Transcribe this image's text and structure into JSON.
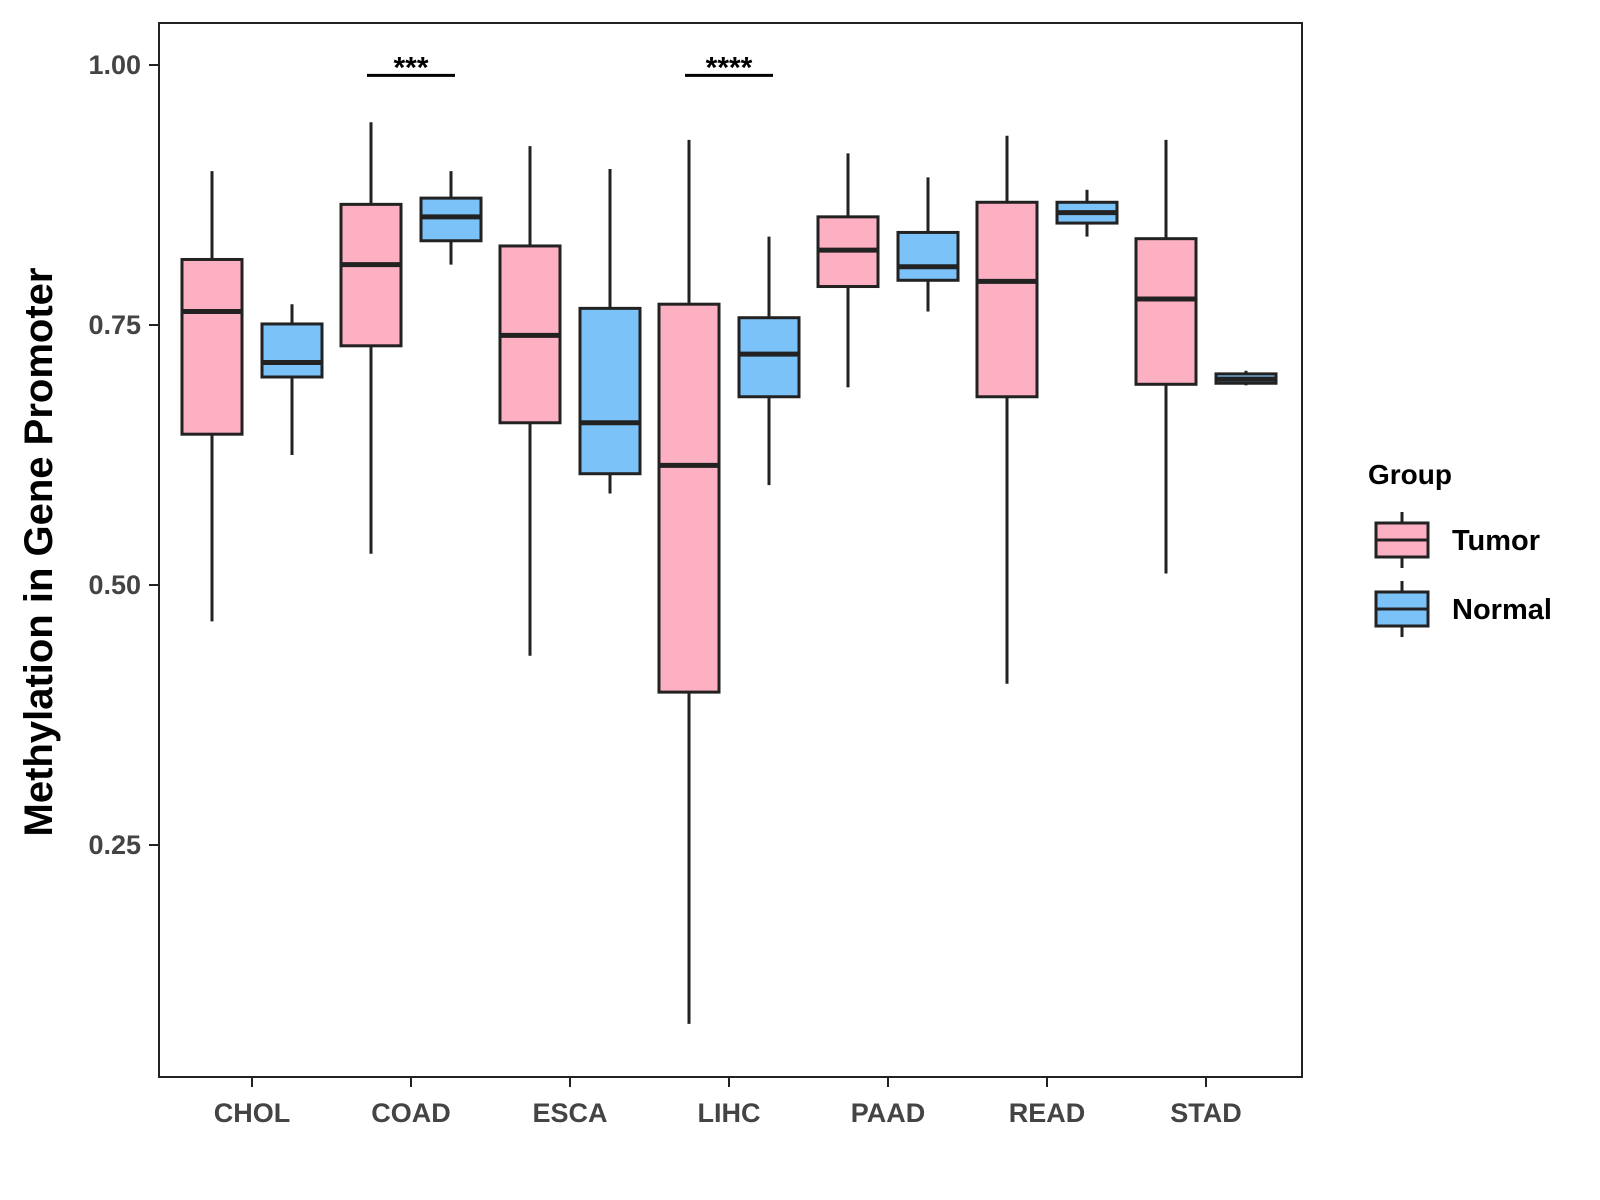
{
  "chart_data": {
    "type": "boxplot",
    "ylabel": "Methylation in Gene Promoter",
    "xlabel": "",
    "ylim": [
      0.05,
      1.04
    ],
    "yticks": [
      0.25,
      0.5,
      0.75,
      1.0
    ],
    "ytick_labels": [
      "0.25",
      "0.50",
      "0.75",
      "1.00"
    ],
    "grid": false,
    "legend": {
      "title": "Group",
      "placement": "right",
      "entries": [
        {
          "name": "Tumor",
          "color": "#FDB0C2"
        },
        {
          "name": "Normal",
          "color": "#7AC2F8"
        }
      ]
    },
    "categories": [
      "CHOL",
      "COAD",
      "ESCA",
      "LIHC",
      "PAAD",
      "READ",
      "STAD"
    ],
    "series": [
      {
        "name": "Tumor",
        "color": "#FDB0C2",
        "boxes": [
          {
            "min": 0.465,
            "q1": 0.645,
            "median": 0.763,
            "q3": 0.813,
            "max": 0.898
          },
          {
            "min": 0.53,
            "q1": 0.73,
            "median": 0.808,
            "q3": 0.866,
            "max": 0.945
          },
          {
            "min": 0.432,
            "q1": 0.656,
            "median": 0.74,
            "q3": 0.826,
            "max": 0.922
          },
          {
            "min": 0.078,
            "q1": 0.397,
            "median": 0.615,
            "q3": 0.77,
            "max": 0.928
          },
          {
            "min": 0.69,
            "q1": 0.787,
            "median": 0.822,
            "q3": 0.854,
            "max": 0.915
          },
          {
            "min": 0.405,
            "q1": 0.681,
            "median": 0.792,
            "q3": 0.868,
            "max": 0.932
          },
          {
            "min": 0.511,
            "q1": 0.693,
            "median": 0.775,
            "q3": 0.833,
            "max": 0.928
          }
        ]
      },
      {
        "name": "Normal",
        "color": "#7AC2F8",
        "boxes": [
          {
            "min": 0.625,
            "q1": 0.7,
            "median": 0.714,
            "q3": 0.751,
            "max": 0.77
          },
          {
            "min": 0.808,
            "q1": 0.831,
            "median": 0.854,
            "q3": 0.872,
            "max": 0.898
          },
          {
            "min": 0.588,
            "q1": 0.607,
            "median": 0.656,
            "q3": 0.766,
            "max": 0.9
          },
          {
            "min": 0.596,
            "q1": 0.681,
            "median": 0.722,
            "q3": 0.757,
            "max": 0.835
          },
          {
            "min": 0.763,
            "q1": 0.793,
            "median": 0.806,
            "q3": 0.839,
            "max": 0.892
          },
          {
            "min": 0.835,
            "q1": 0.848,
            "median": 0.858,
            "q3": 0.868,
            "max": 0.88
          },
          {
            "min": 0.692,
            "q1": 0.694,
            "median": 0.698,
            "q3": 0.703,
            "max": 0.706
          }
        ]
      }
    ],
    "annotations": [
      {
        "category": "COAD",
        "label": "***",
        "y": 0.99
      },
      {
        "category": "LIHC",
        "label": "****",
        "y": 0.99
      }
    ]
  }
}
